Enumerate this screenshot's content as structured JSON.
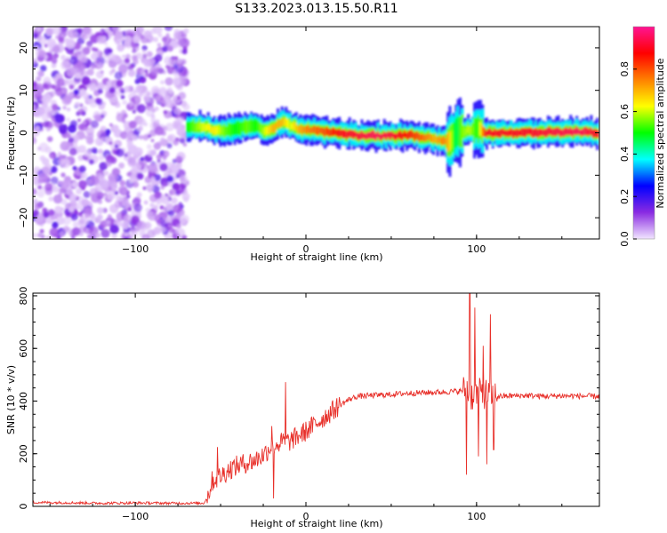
{
  "figure": {
    "title": "S133.2023.013.15.50.R11"
  },
  "chart_data": [
    {
      "type": "heatmap",
      "xlabel": "Height of straight line (km)",
      "ylabel": "Frequency (Hz)",
      "xlim": [
        -160,
        172
      ],
      "ylim": [
        -25,
        25
      ],
      "xticks": [
        -100,
        0,
        100
      ],
      "yticks": [
        -20,
        -10,
        0,
        10,
        20
      ],
      "grid": false,
      "noise_region_x": [
        -160,
        -70
      ],
      "ridge": {
        "x": [
          -70,
          -62,
          -55,
          -48,
          -42,
          -35,
          -30,
          -25,
          -20,
          -15,
          -10,
          -5,
          0,
          10,
          20,
          30,
          40,
          50,
          60,
          70,
          75,
          80,
          83,
          86,
          88,
          90,
          95,
          100,
          105,
          120,
          140,
          160,
          170
        ],
        "y": [
          1.5,
          1.5,
          0.8,
          0.5,
          1.0,
          1.5,
          2.0,
          0.5,
          1.0,
          2.5,
          2.0,
          0.8,
          0.8,
          0.2,
          0.0,
          -0.7,
          -0.7,
          -0.7,
          -0.5,
          -1.0,
          -1.5,
          -2.0,
          -2.0,
          -1.0,
          0.0,
          0.5,
          0.5,
          1.0,
          0.0,
          0.0,
          0.2,
          0.2,
          0.0
        ],
        "amplitude": [
          0.5,
          0.6,
          0.65,
          0.55,
          0.5,
          0.55,
          0.5,
          0.6,
          0.7,
          0.7,
          0.6,
          0.7,
          0.75,
          0.8,
          0.9,
          0.92,
          0.95,
          0.92,
          0.85,
          0.75,
          0.7,
          0.75,
          0.7,
          0.5,
          0.45,
          0.55,
          0.6,
          0.5,
          0.9,
          0.9,
          0.92,
          0.95,
          0.9
        ]
      },
      "colorbar": {
        "label": "Normalized spectral amplitude",
        "range": [
          0,
          1
        ],
        "ticks": [
          0.0,
          0.2,
          0.4,
          0.6,
          0.8
        ],
        "colormap": [
          "#f2e6ff",
          "#8a2be2",
          "#0000ff",
          "#00ffff",
          "#00ff00",
          "#ffff00",
          "#ff8000",
          "#ff0000",
          "#ff1493"
        ]
      }
    },
    {
      "type": "line",
      "xlabel": "Height of straight line (km)",
      "ylabel": "SNR (10 * v/v)",
      "xlim": [
        -160,
        172
      ],
      "ylim": [
        0,
        810
      ],
      "xticks": [
        -100,
        0,
        100
      ],
      "yticks": [
        0,
        200,
        400,
        600,
        800
      ],
      "grid": false,
      "series": [
        {
          "color": "#e8302a",
          "x": [
            -160,
            -140,
            -120,
            -100,
            -80,
            -60,
            -58,
            -55,
            -50,
            -45,
            -40,
            -35,
            -30,
            -25,
            -20,
            -15,
            -12,
            -10,
            -5,
            0,
            5,
            10,
            15,
            20,
            25,
            30,
            40,
            50,
            60,
            70,
            80,
            85,
            90,
            93,
            95,
            96,
            97,
            100,
            103,
            105,
            107,
            108,
            110,
            115,
            120,
            130,
            140,
            150,
            160,
            172
          ],
          "y": [
            15,
            14,
            12,
            13,
            12,
            12,
            30,
            95,
            115,
            140,
            155,
            165,
            175,
            195,
            230,
            240,
            250,
            245,
            265,
            285,
            310,
            335,
            360,
            385,
            405,
            418,
            422,
            425,
            430,
            432,
            434,
            436,
            438,
            440,
            442,
            430,
            420,
            425,
            430,
            428,
            425,
            422,
            420,
            418,
            420,
            421,
            418,
            420,
            419,
            418
          ]
        }
      ],
      "spikes": [
        {
          "x": -52,
          "y": 225
        },
        {
          "x": -20,
          "y": 305
        },
        {
          "x": -19,
          "y": 30
        },
        {
          "x": -12,
          "y": 472
        },
        {
          "x": 94,
          "y": 120
        },
        {
          "x": 96,
          "y": 810
        },
        {
          "x": 99,
          "y": 755
        },
        {
          "x": 101,
          "y": 190
        },
        {
          "x": 104,
          "y": 610
        },
        {
          "x": 106,
          "y": 160
        },
        {
          "x": 108,
          "y": 730
        },
        {
          "x": 110,
          "y": 215
        }
      ]
    }
  ]
}
